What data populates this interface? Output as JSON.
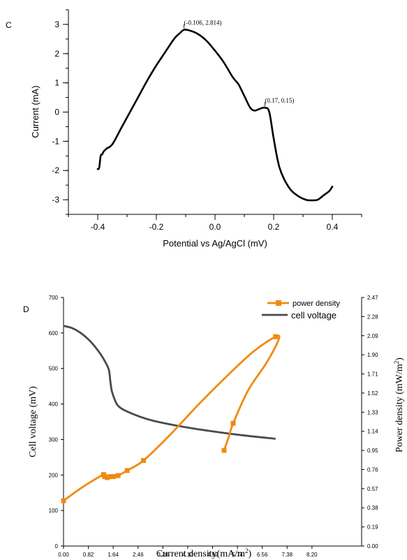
{
  "colors": {
    "axis": "#000000",
    "curve_c": "#000000",
    "power": "#f08a10",
    "voltage": "#4a4a4a"
  },
  "chart_data": [
    {
      "type": "line",
      "panel_label": "C",
      "xlabel": "Potential vs Ag/AgCl (mV)",
      "ylabel": "Current  (mA)",
      "xlim": [
        -0.5,
        0.5
      ],
      "ylim": [
        -3.5,
        3.5
      ],
      "x_ticks": [
        -0.4,
        -0.2,
        0.0,
        0.2,
        0.4
      ],
      "x_tick_labels": [
        "-0.4",
        "-0.2",
        "0.0",
        "0.2",
        "0.4"
      ],
      "y_ticks": [
        3,
        2,
        1,
        0,
        -1,
        -2,
        -3
      ],
      "y_tick_labels": [
        "3",
        "2",
        "1",
        "0",
        "-1",
        "-2",
        "-3"
      ],
      "grid": false,
      "series": [
        {
          "x": [
            -0.4,
            -0.395,
            -0.39,
            -0.385,
            -0.38,
            -0.375,
            -0.37,
            -0.35,
            -0.32,
            -0.29,
            -0.26,
            -0.23,
            -0.2,
            -0.17,
            -0.14,
            -0.12,
            -0.106,
            -0.09,
            -0.06,
            -0.03,
            0.0,
            0.03,
            0.06,
            0.08,
            0.1,
            0.12,
            0.135,
            0.15,
            0.17,
            0.185,
            0.2,
            0.22,
            0.25,
            0.28,
            0.31,
            0.33,
            0.35,
            0.37,
            0.39,
            0.4
          ],
          "y": [
            -1.95,
            -1.9,
            -1.5,
            -1.45,
            -1.35,
            -1.3,
            -1.25,
            -1.1,
            -0.55,
            0.0,
            0.55,
            1.1,
            1.6,
            2.05,
            2.5,
            2.7,
            2.814,
            2.8,
            2.68,
            2.45,
            2.1,
            1.7,
            1.2,
            0.95,
            0.55,
            0.15,
            0.05,
            0.1,
            0.15,
            0.0,
            -0.9,
            -1.9,
            -2.55,
            -2.85,
            -3.0,
            -3.02,
            -3.0,
            -2.85,
            -2.7,
            -2.55
          ]
        }
      ],
      "annotations": [
        {
          "text": "(-0.106, 2.814)",
          "x": -0.106,
          "y": 2.814
        },
        {
          "text": "(0.17, 0.15)",
          "x": 0.17,
          "y": 0.15
        }
      ]
    },
    {
      "type": "line",
      "panel_label": "D",
      "xlabel": "Current density(mA/m",
      "xlabel_sup": "2",
      "xlabel_end": ")",
      "ylabel": "Cell voltage (mV)",
      "ylabel2": "Power density (mW/m",
      "ylabel2_sup": "2",
      "ylabel2_end": ")",
      "xlim": [
        0,
        9.84
      ],
      "ylim": [
        0,
        700
      ],
      "ylim2": [
        0,
        2.47
      ],
      "x_ticks": [
        0.0,
        0.82,
        1.64,
        2.46,
        3.28,
        4.1,
        4.92,
        5.74,
        6.56,
        7.38,
        8.2
      ],
      "x_tick_labels": [
        "0.00",
        "0.82",
        "1.64",
        "2.46",
        "3.28",
        "4.10",
        "4.92",
        "5.74",
        "6.56",
        "7.38",
        "8.20"
      ],
      "y_ticks": [
        0,
        100,
        200,
        300,
        400,
        500,
        600,
        700
      ],
      "y_tick_labels": [
        "0",
        "100",
        "200",
        "300",
        "400",
        "500",
        "600",
        "700"
      ],
      "y2_ticks": [
        0.0,
        0.19,
        0.38,
        0.57,
        0.76,
        0.95,
        1.14,
        1.33,
        1.52,
        1.71,
        1.9,
        2.09,
        2.28,
        2.47
      ],
      "y2_tick_labels": [
        "0.00",
        "0.19",
        "0.38",
        "0.57",
        "0.76",
        "0.95",
        "1.14",
        "1.33",
        "1.52",
        "1.71",
        "1.90",
        "2.09",
        "2.28",
        "2.47"
      ],
      "legend_position": "top-right",
      "grid": false,
      "series": [
        {
          "name": "power density",
          "axis": "right",
          "marker": "square",
          "x": [
            0.0,
            1.32,
            1.36,
            1.44,
            1.54,
            1.64,
            1.8,
            2.1,
            2.64,
            7.0,
            5.6,
            5.3
          ],
          "y": [
            0.45,
            0.71,
            0.69,
            0.68,
            0.69,
            0.69,
            0.7,
            0.75,
            0.85,
            2.08,
            1.22,
            0.95
          ],
          "path_x": [
            0.0,
            0.6,
            1.32,
            1.36,
            1.44,
            1.54,
            1.64,
            1.8,
            2.1,
            2.64,
            3.5,
            4.5,
            5.5,
            6.3,
            7.0,
            7.1,
            6.7,
            6.1,
            5.6,
            5.45,
            5.3
          ],
          "path_y": [
            0.45,
            0.58,
            0.71,
            0.69,
            0.68,
            0.69,
            0.69,
            0.7,
            0.75,
            0.85,
            1.1,
            1.42,
            1.72,
            1.94,
            2.08,
            2.05,
            1.82,
            1.55,
            1.22,
            1.08,
            0.95
          ]
        },
        {
          "name": "cell voltage",
          "axis": "left",
          "x": [
            0.0,
            0.3,
            0.6,
            0.9,
            1.2,
            1.4,
            1.5,
            1.55,
            1.6,
            1.7,
            1.8,
            2.0,
            2.5,
            3.0,
            4.0,
            5.0,
            6.0,
            7.0
          ],
          "y": [
            620,
            613,
            598,
            575,
            543,
            515,
            495,
            460,
            435,
            410,
            395,
            383,
            365,
            352,
            335,
            322,
            311,
            302
          ]
        }
      ]
    }
  ]
}
